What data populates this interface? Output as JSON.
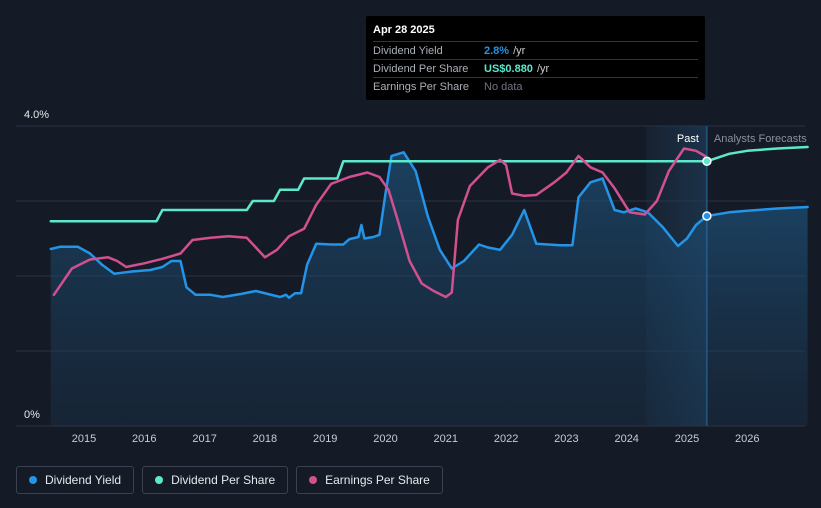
{
  "tooltip": {
    "date": "Apr 28 2025",
    "rows": [
      {
        "label": "Dividend Yield",
        "value": "2.8%",
        "unit": "/yr"
      },
      {
        "label": "Dividend Per Share",
        "value": "US$0.880",
        "unit": "/yr"
      },
      {
        "label": "Earnings Per Share",
        "nodata": "No data"
      }
    ]
  },
  "regions": {
    "past": "Past",
    "forecast": "Analysts Forecasts"
  },
  "legend": [
    {
      "label": "Dividend Yield",
      "color": "#2394e8"
    },
    {
      "label": "Dividend Per Share",
      "color": "#5ce8cc"
    },
    {
      "label": "Earnings Per Share",
      "color": "#d1508f"
    }
  ],
  "chart_data": {
    "type": "line",
    "ylim": [
      0,
      4.0
    ],
    "y_ticks": [
      "0%",
      "4.0%"
    ],
    "x_ticks": [
      "2015",
      "2016",
      "2017",
      "2018",
      "2019",
      "2020",
      "2021",
      "2022",
      "2023",
      "2024",
      "2025",
      "2026"
    ],
    "xlim": [
      2014.4,
      2027.0
    ],
    "past_end": 2025.33,
    "series": [
      {
        "name": "Dividend Yield",
        "color": "#2394e8",
        "fill": true,
        "points": [
          [
            2014.45,
            2.36
          ],
          [
            2014.6,
            2.39
          ],
          [
            2014.9,
            2.39
          ],
          [
            2015.1,
            2.3
          ],
          [
            2015.3,
            2.15
          ],
          [
            2015.5,
            2.03
          ],
          [
            2015.8,
            2.06
          ],
          [
            2016.1,
            2.08
          ],
          [
            2016.3,
            2.12
          ],
          [
            2016.45,
            2.2
          ],
          [
            2016.6,
            2.2
          ],
          [
            2016.7,
            1.85
          ],
          [
            2016.85,
            1.75
          ],
          [
            2017.1,
            1.75
          ],
          [
            2017.3,
            1.72
          ],
          [
            2017.6,
            1.76
          ],
          [
            2017.85,
            1.8
          ],
          [
            2018.05,
            1.76
          ],
          [
            2018.25,
            1.72
          ],
          [
            2018.35,
            1.75
          ],
          [
            2018.4,
            1.71
          ],
          [
            2018.5,
            1.77
          ],
          [
            2018.6,
            1.77
          ],
          [
            2018.7,
            2.15
          ],
          [
            2018.85,
            2.43
          ],
          [
            2019.1,
            2.42
          ],
          [
            2019.3,
            2.42
          ],
          [
            2019.4,
            2.49
          ],
          [
            2019.55,
            2.52
          ],
          [
            2019.6,
            2.68
          ],
          [
            2019.65,
            2.5
          ],
          [
            2019.8,
            2.52
          ],
          [
            2019.9,
            2.55
          ],
          [
            2020.0,
            3.1
          ],
          [
            2020.1,
            3.6
          ],
          [
            2020.3,
            3.65
          ],
          [
            2020.5,
            3.4
          ],
          [
            2020.7,
            2.8
          ],
          [
            2020.9,
            2.35
          ],
          [
            2021.1,
            2.1
          ],
          [
            2021.3,
            2.2
          ],
          [
            2021.55,
            2.42
          ],
          [
            2021.7,
            2.38
          ],
          [
            2021.9,
            2.35
          ],
          [
            2022.1,
            2.55
          ],
          [
            2022.3,
            2.88
          ],
          [
            2022.5,
            2.43
          ],
          [
            2022.7,
            2.42
          ],
          [
            2022.9,
            2.41
          ],
          [
            2023.1,
            2.41
          ],
          [
            2023.2,
            3.05
          ],
          [
            2023.4,
            3.25
          ],
          [
            2023.6,
            3.3
          ],
          [
            2023.8,
            2.88
          ],
          [
            2023.95,
            2.85
          ],
          [
            2024.15,
            2.9
          ],
          [
            2024.35,
            2.85
          ],
          [
            2024.6,
            2.65
          ],
          [
            2024.85,
            2.4
          ],
          [
            2025.0,
            2.5
          ],
          [
            2025.15,
            2.68
          ],
          [
            2025.33,
            2.8
          ]
        ]
      },
      {
        "name": "Dividend Per Share",
        "color": "#5ce8cc",
        "fill": false,
        "points": [
          [
            2014.45,
            2.73
          ],
          [
            2016.2,
            2.73
          ],
          [
            2016.3,
            2.88
          ],
          [
            2017.7,
            2.88
          ],
          [
            2017.8,
            3.0
          ],
          [
            2018.15,
            3.0
          ],
          [
            2018.25,
            3.15
          ],
          [
            2018.55,
            3.15
          ],
          [
            2018.65,
            3.3
          ],
          [
            2019.2,
            3.3
          ],
          [
            2019.3,
            3.53
          ],
          [
            2025.33,
            3.53
          ]
        ]
      },
      {
        "name": "Earnings Per Share",
        "color": "#d1508f",
        "fill": false,
        "points": [
          [
            2014.5,
            1.75
          ],
          [
            2014.8,
            2.1
          ],
          [
            2015.1,
            2.22
          ],
          [
            2015.4,
            2.25
          ],
          [
            2015.55,
            2.2
          ],
          [
            2015.7,
            2.12
          ],
          [
            2016.0,
            2.17
          ],
          [
            2016.3,
            2.23
          ],
          [
            2016.6,
            2.3
          ],
          [
            2016.8,
            2.48
          ],
          [
            2017.1,
            2.51
          ],
          [
            2017.4,
            2.53
          ],
          [
            2017.7,
            2.51
          ],
          [
            2017.85,
            2.38
          ],
          [
            2018.0,
            2.25
          ],
          [
            2018.2,
            2.35
          ],
          [
            2018.4,
            2.53
          ],
          [
            2018.65,
            2.63
          ],
          [
            2018.85,
            2.95
          ],
          [
            2019.1,
            3.23
          ],
          [
            2019.4,
            3.32
          ],
          [
            2019.7,
            3.38
          ],
          [
            2019.9,
            3.32
          ],
          [
            2020.05,
            3.15
          ],
          [
            2020.2,
            2.75
          ],
          [
            2020.4,
            2.2
          ],
          [
            2020.6,
            1.9
          ],
          [
            2020.8,
            1.8
          ],
          [
            2021.0,
            1.72
          ],
          [
            2021.1,
            1.78
          ],
          [
            2021.2,
            2.75
          ],
          [
            2021.4,
            3.2
          ],
          [
            2021.7,
            3.45
          ],
          [
            2021.9,
            3.55
          ],
          [
            2022.0,
            3.48
          ],
          [
            2022.1,
            3.1
          ],
          [
            2022.3,
            3.07
          ],
          [
            2022.5,
            3.08
          ],
          [
            2022.8,
            3.25
          ],
          [
            2023.0,
            3.38
          ],
          [
            2023.2,
            3.6
          ],
          [
            2023.4,
            3.45
          ],
          [
            2023.6,
            3.38
          ],
          [
            2023.8,
            3.17
          ],
          [
            2024.05,
            2.85
          ],
          [
            2024.3,
            2.82
          ],
          [
            2024.5,
            3.0
          ],
          [
            2024.7,
            3.4
          ],
          [
            2024.95,
            3.7
          ],
          [
            2025.15,
            3.67
          ],
          [
            2025.3,
            3.6
          ]
        ]
      },
      {
        "name": "Dividend Yield Forecast",
        "color": "#2394e8",
        "fill": true,
        "points": [
          [
            2025.33,
            2.8
          ],
          [
            2025.7,
            2.85
          ],
          [
            2026.0,
            2.87
          ],
          [
            2026.5,
            2.9
          ],
          [
            2027.0,
            2.92
          ]
        ]
      },
      {
        "name": "Dividend Per Share Forecast",
        "color": "#5ce8cc",
        "fill": false,
        "points": [
          [
            2025.33,
            3.53
          ],
          [
            2025.7,
            3.63
          ],
          [
            2026.0,
            3.67
          ],
          [
            2026.5,
            3.7
          ],
          [
            2027.0,
            3.72
          ]
        ]
      }
    ],
    "markers": [
      {
        "series": "Dividend Per Share",
        "x": 2025.33,
        "y": 3.53
      },
      {
        "series": "Dividend Yield",
        "x": 2025.33,
        "y": 2.8
      }
    ]
  }
}
